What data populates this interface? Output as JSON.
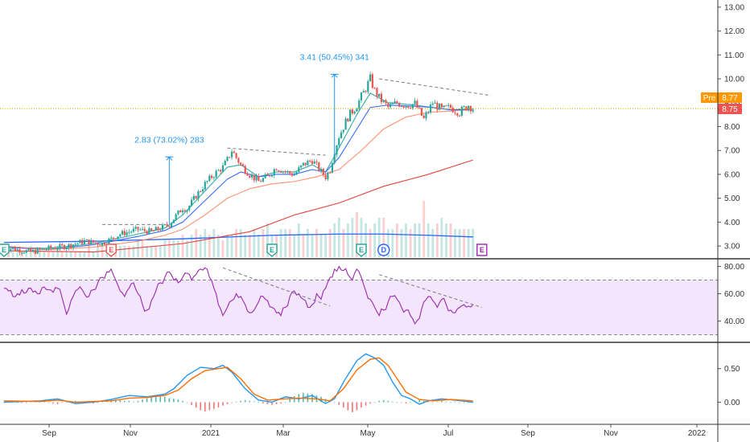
{
  "colors": {
    "up": "#26a69a",
    "down": "#ef5350",
    "ma_fast": "#26a69a",
    "ma_mid": "#2962ff",
    "ma_slow": "#ff8a65",
    "ma_long": "#e53935",
    "rsi": "#9c27b0",
    "rsi_band": "#f3e5fc",
    "macd": "#2196f3",
    "signal": "#ff6d00",
    "pre": "#ff9800",
    "last": "#ef5350",
    "annotation": "#2196f3",
    "trendline": "#787b86"
  },
  "chart_data": [
    {
      "type": "candlestick",
      "title": "",
      "ylim": [
        2.6,
        13.3
      ],
      "y_ticks": [
        "3.00",
        "4.00",
        "5.00",
        "6.00",
        "7.00",
        "8.00",
        "9.00",
        "10.00",
        "11.00",
        "12.00",
        "13.00"
      ],
      "x_ticks": [
        "Sep",
        "Nov",
        "2021",
        "Mar",
        "May",
        "Jul",
        "Sep",
        "Nov",
        "2022"
      ],
      "close_path": [
        [
          0,
          2.95
        ],
        [
          6,
          2.75
        ],
        [
          10,
          2.9
        ],
        [
          14,
          3.0
        ],
        [
          18,
          3.2
        ],
        [
          22,
          3.1
        ],
        [
          26,
          3.5
        ],
        [
          28,
          3.6
        ],
        [
          30,
          3.7
        ],
        [
          31,
          3.65
        ],
        [
          33,
          3.6
        ],
        [
          35,
          3.75
        ],
        [
          37,
          3.9
        ],
        [
          38,
          4.15
        ],
        [
          40,
          4.6
        ],
        [
          41,
          4.55
        ],
        [
          43,
          5.1
        ],
        [
          45,
          5.6
        ],
        [
          47,
          6.0
        ],
        [
          49,
          6.3
        ],
        [
          50,
          6.6
        ],
        [
          51,
          7.0
        ],
        [
          52,
          6.7
        ],
        [
          53,
          6.4
        ],
        [
          55,
          6.0
        ],
        [
          57,
          5.7
        ],
        [
          59,
          5.9
        ],
        [
          61,
          6.3
        ],
        [
          63,
          6.1
        ],
        [
          65,
          6.0
        ],
        [
          67,
          6.4
        ],
        [
          69,
          6.6
        ],
        [
          71,
          6.1
        ],
        [
          72,
          5.9
        ],
        [
          73,
          6.2
        ],
        [
          74,
          7.0
        ],
        [
          75,
          7.6
        ],
        [
          77,
          8.4
        ],
        [
          79,
          8.9
        ],
        [
          81,
          9.6
        ],
        [
          82,
          10.0
        ],
        [
          83,
          9.5
        ],
        [
          84,
          9.2
        ],
        [
          86,
          8.8
        ],
        [
          88,
          9.0
        ],
        [
          90,
          8.9
        ],
        [
          92,
          8.95
        ],
        [
          94,
          8.3
        ],
        [
          96,
          9.0
        ],
        [
          98,
          8.7
        ],
        [
          100,
          8.8
        ],
        [
          102,
          8.6
        ],
        [
          104,
          8.9
        ],
        [
          105,
          8.75
        ]
      ],
      "candles_per_point": 3,
      "series": [
        {
          "name": "",
          "kind": "moving-average",
          "points": [
            [
              0,
              2.95
            ],
            [
              10,
              2.9
            ],
            [
              20,
              3.1
            ],
            [
              30,
              3.5
            ],
            [
              36,
              3.75
            ],
            [
              40,
              4.3
            ],
            [
              45,
              5.3
            ],
            [
              50,
              6.3
            ],
            [
              53,
              6.4
            ],
            [
              57,
              5.9
            ],
            [
              61,
              6.1
            ],
            [
              65,
              6.1
            ],
            [
              69,
              6.4
            ],
            [
              72,
              6.1
            ],
            [
              75,
              7.1
            ],
            [
              79,
              8.5
            ],
            [
              82,
              9.4
            ],
            [
              86,
              9.0
            ],
            [
              92,
              8.9
            ],
            [
              96,
              8.8
            ],
            [
              100,
              8.7
            ],
            [
              105,
              8.75
            ]
          ]
        },
        {
          "name": "",
          "kind": "moving-average",
          "points": [
            [
              0,
              2.95
            ],
            [
              10,
              2.85
            ],
            [
              20,
              3.05
            ],
            [
              30,
              3.4
            ],
            [
              36,
              3.65
            ],
            [
              40,
              4.0
            ],
            [
              45,
              4.9
            ],
            [
              50,
              5.8
            ],
            [
              53,
              6.1
            ],
            [
              57,
              5.9
            ],
            [
              61,
              6.0
            ],
            [
              65,
              6.0
            ],
            [
              69,
              6.2
            ],
            [
              72,
              6.1
            ],
            [
              75,
              6.7
            ],
            [
              79,
              7.9
            ],
            [
              82,
              8.8
            ],
            [
              86,
              8.9
            ],
            [
              92,
              8.85
            ],
            [
              96,
              8.8
            ],
            [
              100,
              8.7
            ],
            [
              105,
              8.7
            ]
          ]
        },
        {
          "name": "",
          "kind": "moving-average",
          "points": [
            [
              0,
              3.0
            ],
            [
              10,
              2.85
            ],
            [
              20,
              2.95
            ],
            [
              30,
              3.2
            ],
            [
              36,
              3.45
            ],
            [
              40,
              3.7
            ],
            [
              45,
              4.3
            ],
            [
              50,
              5.0
            ],
            [
              55,
              5.4
            ],
            [
              60,
              5.6
            ],
            [
              65,
              5.7
            ],
            [
              70,
              5.9
            ],
            [
              75,
              6.2
            ],
            [
              80,
              7.0
            ],
            [
              85,
              7.9
            ],
            [
              90,
              8.4
            ],
            [
              95,
              8.6
            ],
            [
              100,
              8.65
            ],
            [
              105,
              8.7
            ]
          ]
        },
        {
          "name": "",
          "kind": "moving-average",
          "points": [
            [
              0,
              2.8
            ],
            [
              20,
              2.75
            ],
            [
              40,
              3.1
            ],
            [
              55,
              3.6
            ],
            [
              65,
              4.3
            ],
            [
              75,
              4.8
            ],
            [
              85,
              5.5
            ],
            [
              95,
              6.0
            ],
            [
              105,
              6.6
            ]
          ]
        }
      ],
      "volume": [
        1,
        1,
        1,
        1,
        1,
        1,
        2,
        1,
        1,
        1,
        1,
        1,
        2,
        1,
        1,
        1,
        1,
        1,
        1,
        2,
        1,
        2,
        2,
        1,
        2,
        2,
        2,
        2,
        2,
        2,
        3,
        3,
        2,
        2,
        2,
        2,
        3,
        3,
        3,
        3,
        4,
        3,
        4,
        5,
        4,
        5,
        4,
        5,
        4,
        3,
        4,
        4,
        5,
        5,
        4,
        4,
        5,
        4,
        5,
        6,
        4,
        4,
        5,
        5,
        5,
        4,
        6,
        4,
        5,
        4,
        5,
        4,
        4,
        5,
        6,
        7,
        5,
        6,
        7,
        8,
        7,
        6,
        5,
        6,
        7,
        7,
        5,
        5,
        6,
        5,
        6,
        5,
        6,
        6,
        10,
        6,
        5,
        6,
        7,
        6,
        6,
        5,
        5,
        5,
        5,
        5
      ],
      "volume_ma": [
        [
          0,
          3.15
        ],
        [
          20,
          3.2
        ],
        [
          40,
          3.3
        ],
        [
          60,
          3.45
        ],
        [
          75,
          3.5
        ],
        [
          85,
          3.5
        ],
        [
          95,
          3.45
        ],
        [
          105,
          3.38
        ]
      ],
      "event_badges": [
        {
          "label": "E",
          "x": 0
        },
        {
          "label": "E",
          "x": 24
        },
        {
          "label": "E",
          "x": 60
        },
        {
          "label": "E",
          "x": 80
        },
        {
          "label": "D",
          "x": 85
        },
        {
          "label": "E",
          "x": 107
        }
      ],
      "annotations": [
        {
          "label": "2.83 (73.02%) 283",
          "x": 37,
          "from": 3.9,
          "to": 6.73
        },
        {
          "label": "3.41 (50.45%) 341",
          "x": 74,
          "from": 6.78,
          "to": 10.19
        }
      ],
      "trendlines": [
        {
          "from": [
            22,
            3.9
          ],
          "to": [
            36,
            3.9
          ]
        },
        {
          "from": [
            50,
            7.1
          ],
          "to": [
            72,
            6.8
          ]
        },
        {
          "from": [
            84,
            10.0
          ],
          "to": [
            109,
            9.3
          ]
        }
      ],
      "price_tags": [
        {
          "label": "Pre",
          "value": "8.77"
        },
        {
          "label": "",
          "value": "8.75"
        }
      ],
      "last_price": 8.75
    },
    {
      "type": "line",
      "title": "",
      "ylim": [
        25,
        85
      ],
      "y_ticks": [
        "40.00",
        "60.00",
        "80.00"
      ],
      "band": [
        30,
        70
      ],
      "values": [
        64,
        62,
        58,
        60,
        63,
        61,
        64,
        62,
        60,
        65,
        63,
        61,
        64,
        57,
        45,
        55,
        62,
        65,
        60,
        58,
        63,
        68,
        72,
        76,
        78,
        70,
        62,
        58,
        64,
        68,
        60,
        52,
        48,
        55,
        62,
        68,
        72,
        76,
        70,
        68,
        72,
        75,
        70,
        74,
        78,
        79,
        72,
        64,
        52,
        44,
        50,
        55,
        60,
        58,
        52,
        46,
        48,
        54,
        58,
        55,
        50,
        46,
        44,
        50,
        58,
        62,
        60,
        56,
        50,
        52,
        60,
        56,
        64,
        72,
        78,
        80,
        77,
        74,
        70,
        78,
        72,
        62,
        56,
        50,
        44,
        48,
        54,
        58,
        56,
        50,
        48,
        44,
        38,
        42,
        54,
        58,
        55,
        50,
        56,
        52,
        48,
        46,
        50,
        52,
        51,
        52
      ],
      "trendlines": [
        {
          "from": [
            49,
            79
          ],
          "to": [
            73,
            51
          ]
        },
        {
          "from": [
            84,
            74
          ],
          "to": [
            107,
            50
          ]
        }
      ]
    },
    {
      "type": "line",
      "title": "",
      "ylim": [
        -0.33,
        0.88
      ],
      "y_ticks": [
        "0.50",
        "0.00"
      ],
      "series": [
        {
          "name": "",
          "points": [
            [
              0,
              0.0
            ],
            [
              8,
              0.02
            ],
            [
              12,
              0.05
            ],
            [
              16,
              -0.02
            ],
            [
              20,
              0.0
            ],
            [
              24,
              0.04
            ],
            [
              28,
              0.1
            ],
            [
              32,
              0.08
            ],
            [
              36,
              0.12
            ],
            [
              38,
              0.2
            ],
            [
              41,
              0.4
            ],
            [
              44,
              0.52
            ],
            [
              47,
              0.5
            ],
            [
              49,
              0.55
            ],
            [
              51,
              0.45
            ],
            [
              54,
              0.2
            ],
            [
              57,
              0.03
            ],
            [
              60,
              0.0
            ],
            [
              63,
              0.08
            ],
            [
              66,
              0.05
            ],
            [
              69,
              0.1
            ],
            [
              72,
              -0.02
            ],
            [
              74,
              0.05
            ],
            [
              76,
              0.3
            ],
            [
              79,
              0.62
            ],
            [
              81,
              0.72
            ],
            [
              83,
              0.66
            ],
            [
              85,
              0.55
            ],
            [
              87,
              0.3
            ],
            [
              89,
              0.1
            ],
            [
              91,
              0.05
            ],
            [
              93,
              -0.03
            ],
            [
              95,
              0.02
            ],
            [
              98,
              0.05
            ],
            [
              101,
              0.03
            ],
            [
              105,
              0.0
            ]
          ]
        },
        {
          "name": "",
          "points": [
            [
              0,
              0.02
            ],
            [
              8,
              0.01
            ],
            [
              12,
              0.03
            ],
            [
              16,
              0.0
            ],
            [
              20,
              0.01
            ],
            [
              24,
              0.02
            ],
            [
              28,
              0.06
            ],
            [
              32,
              0.07
            ],
            [
              36,
              0.1
            ],
            [
              39,
              0.18
            ],
            [
              42,
              0.35
            ],
            [
              45,
              0.47
            ],
            [
              48,
              0.5
            ],
            [
              50,
              0.52
            ],
            [
              53,
              0.35
            ],
            [
              56,
              0.12
            ],
            [
              59,
              0.03
            ],
            [
              63,
              0.05
            ],
            [
              66,
              0.06
            ],
            [
              70,
              0.05
            ],
            [
              73,
              0.02
            ],
            [
              76,
              0.2
            ],
            [
              79,
              0.48
            ],
            [
              82,
              0.64
            ],
            [
              84,
              0.66
            ],
            [
              86,
              0.55
            ],
            [
              88,
              0.35
            ],
            [
              90,
              0.15
            ],
            [
              93,
              0.04
            ],
            [
              96,
              0.02
            ],
            [
              100,
              0.04
            ],
            [
              105,
              0.02
            ]
          ]
        }
      ],
      "histogram": [
        0.0,
        0.01,
        0.01,
        0.0,
        -0.01,
        0.0,
        0.01,
        0.02,
        0.02,
        0.01,
        0.0,
        -0.02,
        -0.03,
        -0.01,
        0.0,
        0.01,
        0.02,
        0.01,
        0.0,
        -0.01,
        -0.02,
        0.0,
        0.02,
        0.03,
        0.04,
        0.04,
        0.03,
        0.02,
        0.02,
        0.01,
        0.02,
        0.04,
        0.06,
        0.08,
        0.1,
        0.09,
        0.08,
        0.06,
        0.05,
        0.04,
        0.02,
        0.0,
        -0.04,
        -0.08,
        -0.12,
        -0.14,
        -0.12,
        -0.1,
        -0.08,
        -0.05,
        -0.03,
        -0.01,
        0.01,
        0.02,
        0.03,
        0.02,
        0.01,
        0.0,
        -0.02,
        -0.03,
        -0.04,
        -0.03,
        -0.02,
        0.0,
        0.05,
        0.09,
        0.12,
        0.14,
        0.13,
        0.12,
        0.1,
        0.08,
        0.05,
        0.02,
        0.0,
        -0.04,
        -0.08,
        -0.12,
        -0.15,
        -0.12,
        -0.08,
        -0.05,
        -0.02,
        0.0,
        0.02,
        0.03,
        0.02,
        0.01,
        0.0,
        -0.01,
        -0.02,
        0.0,
        0.02,
        0.03,
        0.02,
        0.01,
        0.0,
        0.01,
        0.02,
        0.01,
        0.0,
        0.01,
        0.0,
        0.0,
        0.0,
        0.0
      ]
    }
  ]
}
